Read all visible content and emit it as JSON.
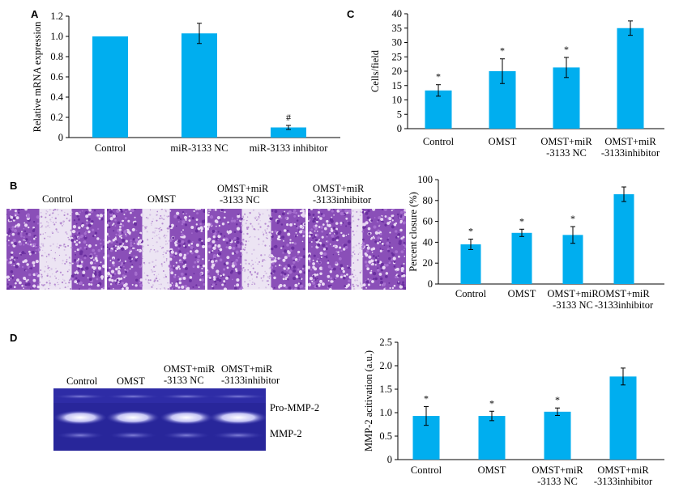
{
  "panels": {
    "A": "A",
    "B": "B",
    "C": "C",
    "D": "D"
  },
  "panel_B": {
    "image_labels": [
      [
        "Control"
      ],
      [
        "OMST"
      ],
      [
        "OMST+miR",
        "-3133 NC"
      ],
      [
        "OMST+miR",
        "-3133inhibitor"
      ]
    ]
  },
  "panel_D": {
    "lane_labels": [
      [
        "Control"
      ],
      [
        "OMST"
      ],
      [
        "OMST+miR",
        "-3133 NC"
      ],
      [
        "OMST+miR",
        "-3133inhibitor"
      ]
    ],
    "band_labels": {
      "pro": "Pro-MMP-2",
      "active": "MMP-2"
    }
  },
  "colors": {
    "bar": "#00aeef",
    "gel_bg": "#28269a",
    "micro": "#8a4fb8"
  },
  "chart_data": [
    {
      "id": "A",
      "type": "bar",
      "categories": [
        [
          "Control"
        ],
        [
          "miR-3133 NC"
        ],
        [
          "miR-3133 inhibitor"
        ]
      ],
      "values": [
        1.0,
        1.03,
        0.1
      ],
      "errors": [
        0.0,
        0.1,
        0.02
      ],
      "annotations": [
        "",
        "",
        "#"
      ],
      "ylabel": "Relative mRNA expression",
      "ylim": [
        0,
        1.2
      ],
      "yticks": [
        "0",
        "0.2",
        "0.4",
        "0.6",
        "0.8",
        "1.0",
        "1.2"
      ]
    },
    {
      "id": "C",
      "type": "bar",
      "categories": [
        [
          "Control"
        ],
        [
          "OMST"
        ],
        [
          "OMST+miR",
          "-3133 NC"
        ],
        [
          "OMST+miR",
          "-3133inhibitor"
        ]
      ],
      "values": [
        13.3,
        20,
        21.3,
        35
      ],
      "errors": [
        2,
        4.3,
        3.5,
        2.5
      ],
      "annotations": [
        "*",
        "*",
        "*",
        ""
      ],
      "ylabel": "Cells/field",
      "ylim": [
        0,
        40
      ],
      "yticks": [
        "0",
        "5",
        "10",
        "15",
        "20",
        "25",
        "30",
        "35",
        "40"
      ]
    },
    {
      "id": "B",
      "type": "bar",
      "categories": [
        [
          "Control"
        ],
        [
          "OMST"
        ],
        [
          "OMST+miR",
          "-3133 NC"
        ],
        [
          "OMST+miR",
          "-3133inhibitor"
        ]
      ],
      "values": [
        38,
        49,
        47,
        86
      ],
      "errors": [
        5,
        3.5,
        8,
        7
      ],
      "annotations": [
        "*",
        "*",
        "*",
        ""
      ],
      "ylabel": "Percent closure (%)",
      "ylim": [
        0,
        100
      ],
      "yticks": [
        "0",
        "20",
        "40",
        "60",
        "80",
        "100"
      ]
    },
    {
      "id": "D",
      "type": "bar",
      "categories": [
        [
          "Control"
        ],
        [
          "OMST"
        ],
        [
          "OMST+miR",
          "-3133 NC"
        ],
        [
          "OMST+miR",
          "-3133inhibitor"
        ]
      ],
      "values": [
        0.93,
        0.93,
        1.02,
        1.77
      ],
      "errors": [
        0.2,
        0.1,
        0.08,
        0.18
      ],
      "annotations": [
        "*",
        "*",
        "*",
        ""
      ],
      "ylabel": "MMP-2 acitivation (a.u.)",
      "ylim": [
        0,
        2.5
      ],
      "yticks": [
        "0",
        "0.5",
        "1.0",
        "1.5",
        "2.0",
        "2.5"
      ]
    }
  ]
}
